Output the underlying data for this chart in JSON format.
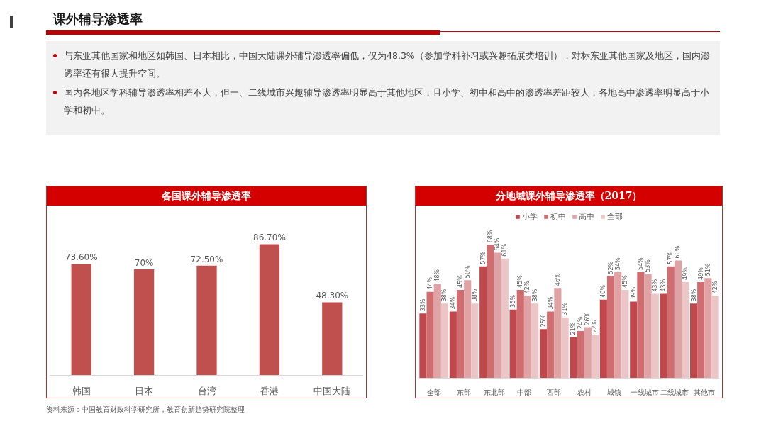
{
  "chart_data": [
    {
      "type": "other",
      "title": "课外辅导渗透率",
      "annotations": [
        "与东亚其他国家和地区如韩国、日本相比，中国大陆课外辅导渗透率偏低，仅为48.3%（参加学科补习或兴趣拓展类培训），对标东亚其他国家及地区，国内渗透率还有很大提升空间。",
        "国内各地区学科辅导渗透率相差不大，但一、二线城市兴趣辅导渗透率明显高于其他地区，且小学、初中和高中的渗透率差距较大，各地高中渗透率明显高于小学和初中。"
      ]
    },
    {
      "type": "bar",
      "title": "各国课外辅导渗透率",
      "categories": [
        "韩国",
        "日本",
        "台湾",
        "香港",
        "中国大陆"
      ],
      "values": [
        73.6,
        70,
        72.5,
        86.7,
        48.3
      ],
      "value_labels": [
        "73.60%",
        "70%",
        "72.50%",
        "86.70%",
        "48.30%"
      ],
      "color": "#c0504d",
      "tick_labels": "x",
      "annotations": [
        "资料来源：中国教育财政科学研究所，教育创新趋势研究院整理"
      ]
    },
    {
      "type": "bar",
      "title": "分地域课外辅导渗透率（2017）",
      "categories": [
        "全部",
        "东部",
        "东北部",
        "中部",
        "西部",
        "农村",
        "城镇",
        "一线城市",
        "二线城市",
        "其他市"
      ],
      "series": [
        {
          "name": "小学",
          "color": "#c0474b",
          "values": [
            33,
            34,
            57,
            35,
            25,
            21,
            40,
            39,
            43,
            38
          ],
          "value_labels": [
            "33%",
            "34%",
            "57%",
            "35%",
            "25%",
            "21%",
            "40%",
            "39%",
            "43%",
            "38%"
          ]
        },
        {
          "name": "初中",
          "color": "#d06d70",
          "values": [
            44,
            45,
            68,
            45,
            34,
            24,
            52,
            54,
            57,
            49
          ],
          "value_labels": [
            "44%",
            "45%",
            "68%",
            "45%",
            "34%",
            "24%",
            "52%",
            "54%",
            "57%",
            "49%"
          ]
        },
        {
          "name": "高中",
          "color": "#dfa3a5",
          "values": [
            48,
            50,
            64,
            42,
            46,
            26,
            54,
            53,
            60,
            51
          ],
          "value_labels": [
            "48%",
            "50%",
            "64%",
            "42%",
            "46%",
            "26%",
            "54%",
            "53%",
            "60%",
            "51%"
          ]
        },
        {
          "name": "全部",
          "color": "#ecc5c6",
          "values": [
            38,
            38,
            61,
            38,
            31,
            22,
            45,
            43,
            49,
            42
          ],
          "value_labels": [
            "38%",
            "38%",
            "61%",
            "38%",
            "31%",
            "22%",
            "45%",
            "43%",
            "49%",
            "42%"
          ]
        }
      ],
      "tick_labels": "x",
      "legend": "top"
    }
  ]
}
